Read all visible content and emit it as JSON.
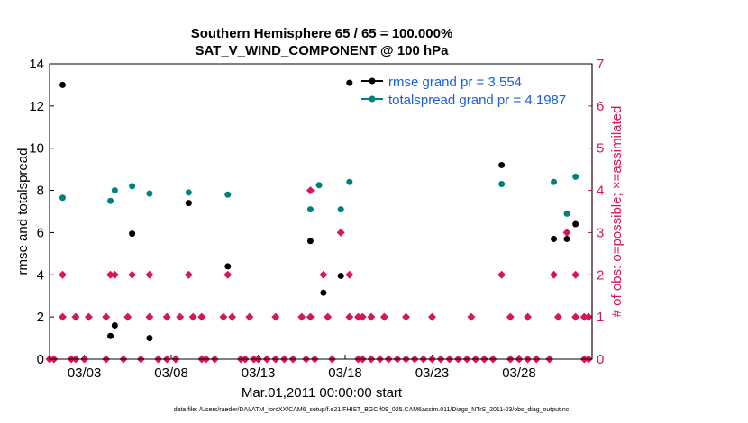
{
  "colors": {
    "rmse": "#000000",
    "spread": "#008080",
    "obs": "#d6155a",
    "legend_text": "#1a5fd8",
    "axis": "#000000"
  },
  "chart_data": {
    "type": "scatter",
    "title": "Southern Hemisphere 65 / 65 = 100.000%",
    "subtitle": "SAT_V_WIND_COMPONENT @ 100 hPa",
    "xlabel": "Mar.01,2011 00:00:00 start",
    "ylabel": "rmse and totalspread",
    "y2label": "# of obs: o=possible; ×=assimilated",
    "footnote": "data file: /Users/raeder/DAI/ATM_forcXX/CAM6_setup/f.e21.FHIST_BGC.f09_025.CAM6assim.011/Diags_NTrS_2011-03/obs_diag_output.nc",
    "xlim": [
      1,
      32.2
    ],
    "ylim": [
      0,
      14
    ],
    "y2lim": [
      0,
      7
    ],
    "xticks": [
      3,
      8,
      13,
      18,
      23,
      28
    ],
    "xtick_labels": [
      "03/03",
      "03/08",
      "03/13",
      "03/18",
      "03/23",
      "03/28"
    ],
    "yticks": [
      0,
      2,
      4,
      6,
      8,
      10,
      12,
      14
    ],
    "y2ticks": [
      0,
      1,
      2,
      3,
      4,
      5,
      6,
      7
    ],
    "legend": [
      {
        "name": "rmse grand pr = 3.554",
        "series": "rmse"
      },
      {
        "name": "totalspread grand pr = 4.1987",
        "series": "spread"
      }
    ],
    "series": [
      {
        "name": "rmse",
        "points": [
          [
            1.75,
            13.0
          ],
          [
            4.5,
            1.1
          ],
          [
            4.75,
            1.6
          ],
          [
            5.75,
            5.95
          ],
          [
            6.75,
            1.0
          ],
          [
            9.0,
            7.4
          ],
          [
            11.25,
            4.4
          ],
          [
            16.0,
            5.6
          ],
          [
            16.75,
            3.15
          ],
          [
            17.75,
            3.95
          ],
          [
            18.25,
            13.1
          ],
          [
            27.0,
            9.2
          ],
          [
            30.0,
            5.7
          ],
          [
            30.75,
            5.7
          ],
          [
            31.25,
            6.4
          ]
        ]
      },
      {
        "name": "totalspread",
        "points": [
          [
            1.75,
            7.65
          ],
          [
            4.5,
            7.5
          ],
          [
            4.75,
            8.0
          ],
          [
            5.75,
            8.2
          ],
          [
            6.75,
            7.85
          ],
          [
            9.0,
            7.9
          ],
          [
            11.25,
            7.8
          ],
          [
            16.0,
            7.1
          ],
          [
            16.5,
            8.25
          ],
          [
            17.75,
            7.1
          ],
          [
            18.25,
            8.4
          ],
          [
            27.0,
            8.3
          ],
          [
            30.0,
            8.4
          ],
          [
            30.75,
            6.9
          ],
          [
            31.25,
            8.65
          ]
        ]
      },
      {
        "name": "obs_possible",
        "points": [
          [
            1.0,
            0
          ],
          [
            1.25,
            0
          ],
          [
            1.75,
            2
          ],
          [
            2.25,
            0
          ],
          [
            2.5,
            0
          ],
          [
            3.0,
            0
          ],
          [
            4.25,
            0
          ],
          [
            4.5,
            2
          ],
          [
            4.75,
            2
          ],
          [
            5.25,
            0
          ],
          [
            5.75,
            2
          ],
          [
            6.25,
            0
          ],
          [
            6.75,
            2
          ],
          [
            7.25,
            0
          ],
          [
            7.75,
            0
          ],
          [
            8.25,
            0
          ],
          [
            9.0,
            2
          ],
          [
            9.75,
            0
          ],
          [
            10.0,
            0
          ],
          [
            10.5,
            0
          ],
          [
            11.25,
            2
          ],
          [
            12.0,
            0
          ],
          [
            12.25,
            0
          ],
          [
            12.75,
            0
          ],
          [
            13.0,
            0
          ],
          [
            13.5,
            0
          ],
          [
            14.0,
            0
          ],
          [
            14.5,
            0
          ],
          [
            15.0,
            0
          ],
          [
            15.75,
            0
          ],
          [
            16.0,
            4
          ],
          [
            16.25,
            0
          ],
          [
            16.75,
            2
          ],
          [
            17.25,
            0
          ],
          [
            17.75,
            3
          ],
          [
            18.25,
            2
          ],
          [
            18.75,
            0
          ],
          [
            19.0,
            0
          ],
          [
            19.5,
            0
          ],
          [
            20.0,
            0
          ],
          [
            20.5,
            0
          ],
          [
            21.0,
            0
          ],
          [
            21.5,
            0
          ],
          [
            22.0,
            0
          ],
          [
            22.5,
            0
          ],
          [
            23.0,
            0
          ],
          [
            23.5,
            0
          ],
          [
            24.0,
            0
          ],
          [
            24.5,
            0
          ],
          [
            25.0,
            0
          ],
          [
            25.5,
            0
          ],
          [
            26.0,
            0
          ],
          [
            26.5,
            0
          ],
          [
            27.0,
            2
          ],
          [
            27.5,
            0
          ],
          [
            28.0,
            0
          ],
          [
            28.5,
            0
          ],
          [
            29.0,
            0
          ],
          [
            29.75,
            0
          ],
          [
            30.0,
            2
          ],
          [
            30.75,
            3
          ],
          [
            31.25,
            2
          ],
          [
            31.75,
            0
          ],
          [
            32.0,
            0
          ]
        ]
      },
      {
        "name": "obs_assimilated",
        "points": [
          [
            1.75,
            1
          ],
          [
            2.5,
            1
          ],
          [
            3.25,
            1
          ],
          [
            4.25,
            1
          ],
          [
            5.5,
            1
          ],
          [
            6.75,
            1
          ],
          [
            7.75,
            1
          ],
          [
            8.5,
            1
          ],
          [
            9.25,
            1
          ],
          [
            9.75,
            1
          ],
          [
            11.0,
            1
          ],
          [
            11.5,
            1
          ],
          [
            12.5,
            1
          ],
          [
            14.0,
            1
          ],
          [
            15.5,
            1
          ],
          [
            16.0,
            1
          ],
          [
            17.0,
            1
          ],
          [
            18.25,
            1
          ],
          [
            18.75,
            1
          ],
          [
            19.0,
            1
          ],
          [
            19.5,
            1
          ],
          [
            20.25,
            1
          ],
          [
            21.5,
            1
          ],
          [
            23.0,
            1
          ],
          [
            25.25,
            1
          ],
          [
            27.5,
            1
          ],
          [
            28.5,
            1
          ],
          [
            30.25,
            1
          ],
          [
            31.25,
            1
          ],
          [
            31.75,
            1
          ],
          [
            32.0,
            1
          ]
        ]
      }
    ]
  }
}
